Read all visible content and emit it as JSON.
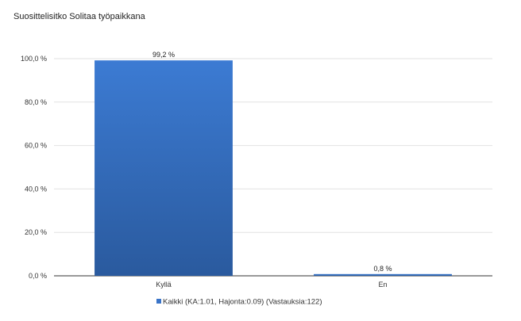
{
  "chart_data": {
    "type": "bar",
    "title": "Suosittelisitko Solitaa työpaikkana",
    "categories": [
      "Kyllä",
      "En"
    ],
    "series": [
      {
        "name": "Kaikki (KA:1.01, Hajonta:0.09) (Vastauksia:122)",
        "values": [
          99.2,
          0.8
        ],
        "color": "#3a74c8"
      }
    ],
    "data_labels": [
      "99,2 %",
      "0,8 %"
    ],
    "ylim": [
      0,
      100
    ],
    "yticks": [
      0,
      20,
      40,
      60,
      80,
      100
    ],
    "ytick_labels": [
      "0,0 %",
      "20,0 %",
      "40,0 %",
      "60,0 %",
      "80,0 %",
      "100,0 %"
    ],
    "grid": true,
    "legend_position": "bottom"
  }
}
